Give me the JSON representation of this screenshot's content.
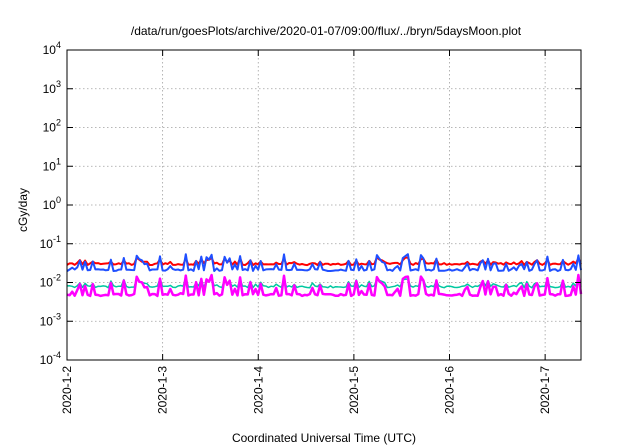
{
  "chart_data": {
    "type": "line",
    "title": "/data/run/goesPlots/archive/2020-01-07/09:00/flux/../bryn/5daysMoon.plot",
    "xlabel": "Coordinated Universal Time (UTC)",
    "ylabel": "cGy/day",
    "xlim": [
      "2020-01-02",
      "2020-01-07 09:00"
    ],
    "ylim": [
      0.0001,
      10000
    ],
    "yscale": "log",
    "grid": true,
    "x_ticks": [
      {
        "value": "2020-01-02",
        "label": "2020-1-2"
      },
      {
        "value": "2020-01-03",
        "label": "2020-1-3"
      },
      {
        "value": "2020-01-04",
        "label": "2020-1-4"
      },
      {
        "value": "2020-01-05",
        "label": "2020-1-5"
      },
      {
        "value": "2020-01-06",
        "label": "2020-1-6"
      },
      {
        "value": "2020-01-07",
        "label": "2020-1-7"
      }
    ],
    "y_ticks": [
      {
        "value": 0.0001,
        "base": "10",
        "exp": "-4"
      },
      {
        "value": 0.001,
        "base": "10",
        "exp": "-3"
      },
      {
        "value": 0.01,
        "base": "10",
        "exp": "-2"
      },
      {
        "value": 0.1,
        "base": "10",
        "exp": "-1"
      },
      {
        "value": 1,
        "base": "10",
        "exp": "0"
      },
      {
        "value": 10,
        "base": "10",
        "exp": "1"
      },
      {
        "value": 100,
        "base": "10",
        "exp": "2"
      },
      {
        "value": 1000,
        "base": "10",
        "exp": "3"
      },
      {
        "value": 10000,
        "base": "10",
        "exp": "4"
      }
    ],
    "series": [
      {
        "color": "#ff0000",
        "width": 2,
        "base": 0.03,
        "spike": 0.45,
        "x": [],
        "values": []
      },
      {
        "color": "#1f4fff",
        "width": 2,
        "base": 0.021,
        "spike": 1.6,
        "x": [],
        "values": []
      },
      {
        "color": "#00c8a0",
        "width": 1.5,
        "base": 0.0078,
        "spike": 0.7,
        "x": [],
        "values": []
      },
      {
        "color": "#ff00ff",
        "width": 2.5,
        "base": 0.0048,
        "spike": 2.2,
        "x": [],
        "values": []
      }
    ]
  }
}
